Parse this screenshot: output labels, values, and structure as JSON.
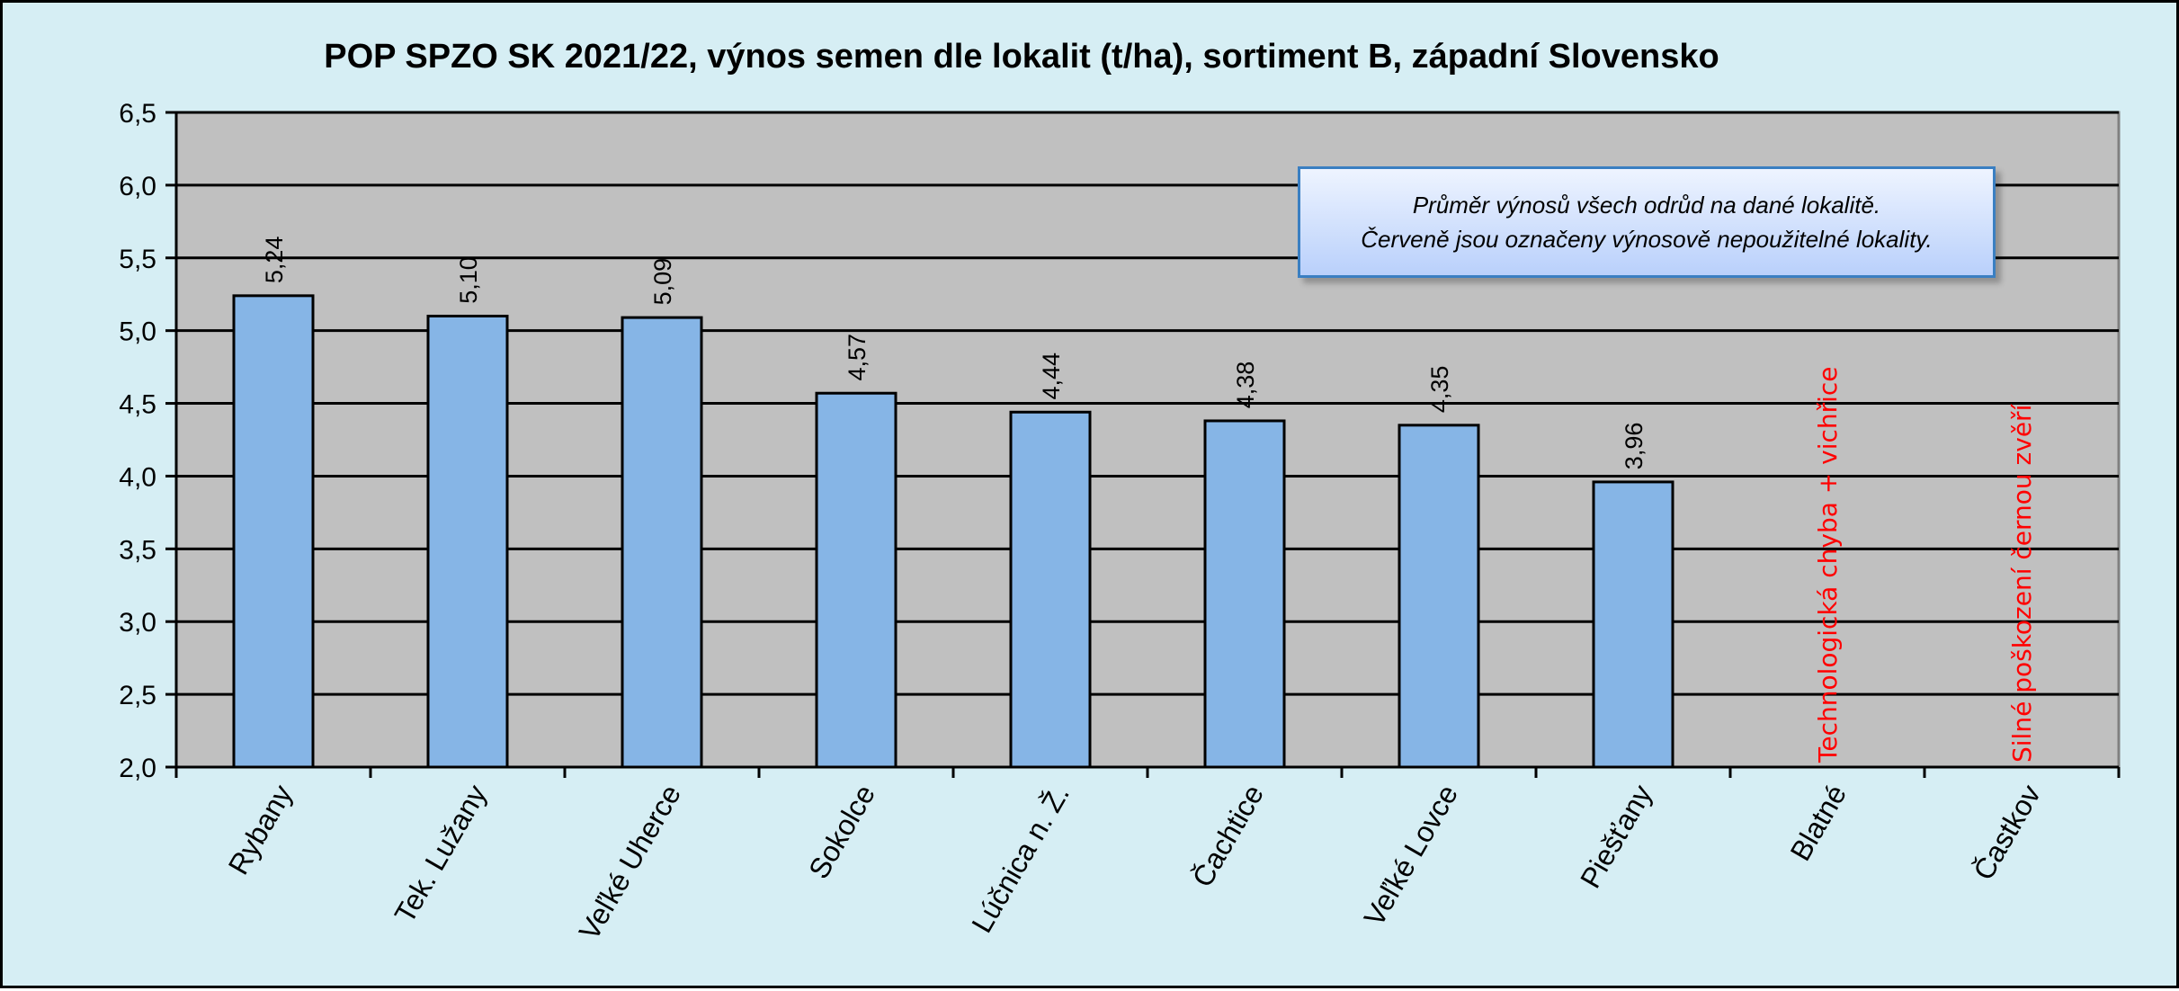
{
  "chart_data": {
    "type": "bar",
    "title": "POP SPZO SK 2021/22, výnos semen dle lokalit (t/ha), sortiment B, západní Slovensko",
    "categories": [
      "Rybany",
      "Tek. Lužany",
      "Veľké Uherce",
      "Sokolce",
      "Lúčnica n. Ž.",
      "Čachtice",
      "Veľké Lovce",
      "Piešťany",
      "Blatné",
      "Častkov"
    ],
    "values": [
      5.24,
      5.1,
      5.09,
      4.57,
      4.44,
      4.38,
      4.35,
      3.96,
      null,
      null
    ],
    "value_labels": [
      "5,24",
      "5,10",
      "5,09",
      "4,57",
      "4,44",
      "4,38",
      "4,35",
      "3,96",
      "",
      ""
    ],
    "annotations": [
      "",
      "",
      "",
      "",
      "",
      "",
      "",
      "",
      "Technologická chyba + vichřice",
      "Silné poškození černou zvěří"
    ],
    "ylim": [
      2.0,
      6.5
    ],
    "yticks": [
      "2,0",
      "2,5",
      "3,0",
      "3,5",
      "4,0",
      "4,5",
      "5,0",
      "5,5",
      "6,0",
      "6,5"
    ],
    "grid": true,
    "colors": {
      "bar": "#86b5e6",
      "plot_bg": "#c0c0c0",
      "page_bg": "#d6eef4",
      "annotation": "#ff0000"
    }
  },
  "note": {
    "line1": "Průměr výnosů všech odrůd na dané lokalitě.",
    "line2": "Červeně jsou označeny výnosově nepoužitelné lokality."
  }
}
